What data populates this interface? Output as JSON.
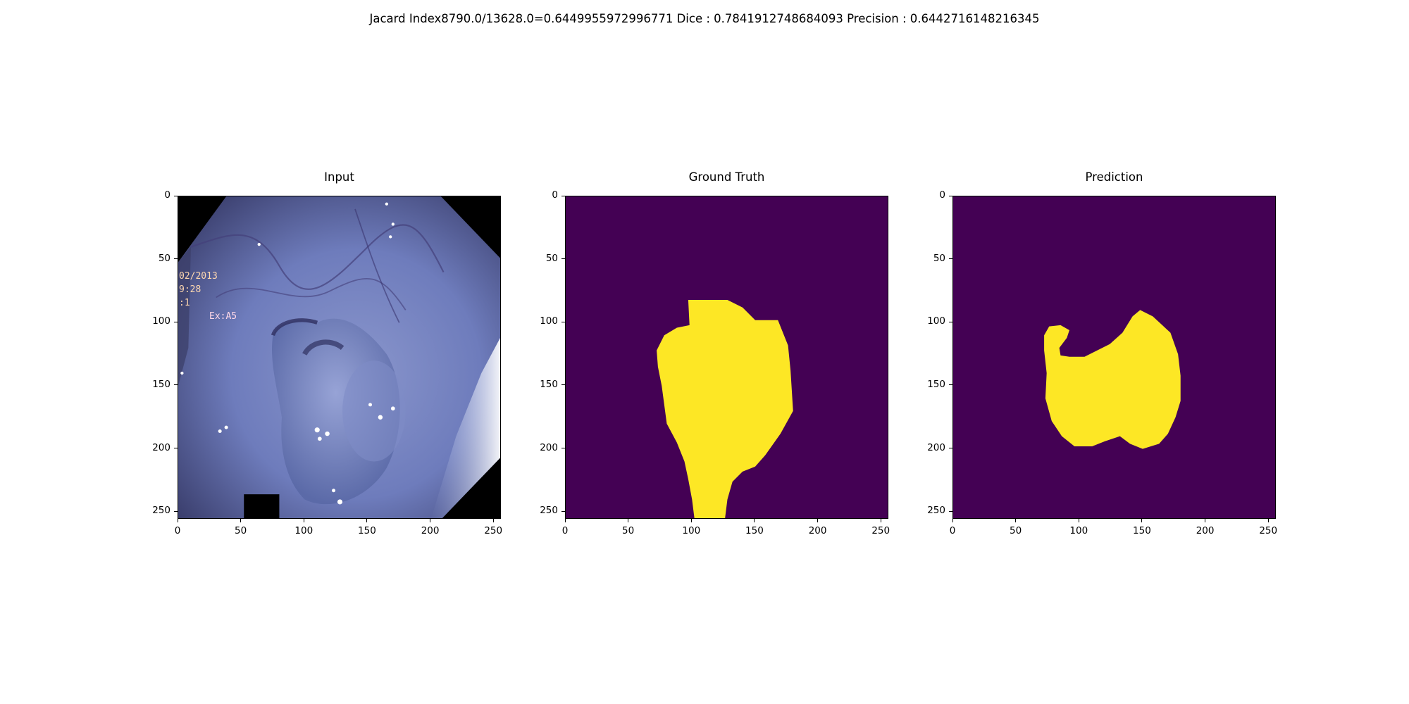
{
  "figure": {
    "suptitle": "Jacard Index8790.0/13628.0=0.6449955972996771 Dice : 0.7841912748684093 Precision : 0.6442716148216345"
  },
  "panels": [
    {
      "id": "input",
      "title": "Input"
    },
    {
      "id": "ground-truth",
      "title": "Ground Truth"
    },
    {
      "id": "prediction",
      "title": "Prediction"
    }
  ],
  "axes": {
    "x_ticks": [
      "0",
      "50",
      "100",
      "150",
      "200",
      "250"
    ],
    "y_ticks": [
      "0",
      "50",
      "100",
      "150",
      "200",
      "250"
    ],
    "tick_values": [
      0,
      50,
      100,
      150,
      200,
      250
    ],
    "extent": 256
  },
  "overlay_text": [
    "02/2013",
    "9:28",
    ":1",
    "Ex:A5"
  ],
  "colors": {
    "mask_background": "#440154",
    "mask_foreground": "#fde725",
    "image_black": "#000000",
    "tissue": "#6c7ab8"
  },
  "masks": {
    "ground_truth": [
      [
        97,
        82
      ],
      [
        128,
        82
      ],
      [
        140,
        88
      ],
      [
        150,
        98
      ],
      [
        168,
        98
      ],
      [
        176,
        118
      ],
      [
        178,
        138
      ],
      [
        180,
        170
      ],
      [
        170,
        188
      ],
      [
        158,
        205
      ],
      [
        150,
        214
      ],
      [
        140,
        218
      ],
      [
        132,
        226
      ],
      [
        128,
        240
      ],
      [
        126,
        256
      ],
      [
        102,
        256
      ],
      [
        100,
        240
      ],
      [
        97,
        224
      ],
      [
        94,
        210
      ],
      [
        88,
        195
      ],
      [
        80,
        180
      ],
      [
        78,
        165
      ],
      [
        76,
        150
      ],
      [
        73,
        135
      ],
      [
        72,
        122
      ],
      [
        78,
        110
      ],
      [
        88,
        104
      ],
      [
        98,
        102
      ]
    ],
    "prediction": [
      [
        76,
        103
      ],
      [
        85,
        102
      ],
      [
        92,
        106
      ],
      [
        90,
        112
      ],
      [
        84,
        120
      ],
      [
        85,
        126
      ],
      [
        92,
        127
      ],
      [
        104,
        127
      ],
      [
        114,
        122
      ],
      [
        124,
        117
      ],
      [
        134,
        108
      ],
      [
        142,
        95
      ],
      [
        148,
        90
      ],
      [
        158,
        95
      ],
      [
        172,
        108
      ],
      [
        178,
        125
      ],
      [
        180,
        142
      ],
      [
        180,
        162
      ],
      [
        176,
        175
      ],
      [
        170,
        188
      ],
      [
        163,
        196
      ],
      [
        150,
        200
      ],
      [
        140,
        196
      ],
      [
        132,
        190
      ],
      [
        120,
        194
      ],
      [
        110,
        198
      ],
      [
        96,
        198
      ],
      [
        86,
        190
      ],
      [
        78,
        178
      ],
      [
        73,
        160
      ],
      [
        74,
        140
      ],
      [
        72,
        122
      ],
      [
        72,
        110
      ]
    ]
  }
}
